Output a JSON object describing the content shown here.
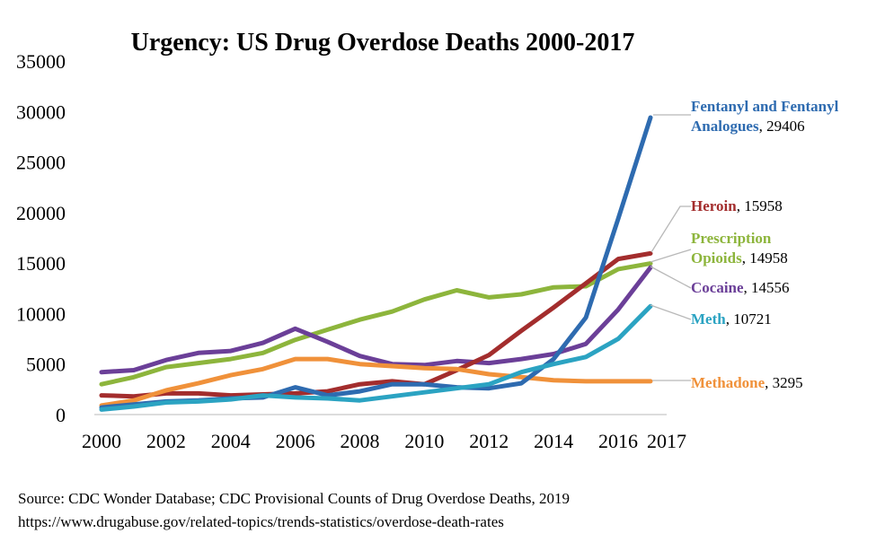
{
  "chart_data": {
    "type": "line",
    "title": "Urgency: US Drug Overdose Deaths 2000-2017",
    "x": [
      2000,
      2001,
      2002,
      2003,
      2004,
      2005,
      2006,
      2007,
      2008,
      2009,
      2010,
      2011,
      2012,
      2013,
      2014,
      2015,
      2016,
      2017
    ],
    "xticks": [
      "2000",
      "2002",
      "2004",
      "2006",
      "2008",
      "2010",
      "2012",
      "2014",
      "2016",
      "2017"
    ],
    "xtick_values": [
      2000,
      2002,
      2004,
      2006,
      2008,
      2010,
      2012,
      2014,
      2016,
      2017.5
    ],
    "yticks": [
      "0",
      "5000",
      "10000",
      "15000",
      "20000",
      "25000",
      "30000",
      "35000"
    ],
    "ylim": [
      0,
      35000
    ],
    "grid": false,
    "series": [
      {
        "name": "Prescription Opioids",
        "color": "#8DB53C",
        "value_label": "14958",
        "values": [
          3000,
          3700,
          4700,
          5100,
          5500,
          6100,
          7400,
          8400,
          9400,
          10200,
          11400,
          12300,
          11600,
          11900,
          12600,
          12700,
          14400,
          14958
        ]
      },
      {
        "name": "Cocaine",
        "color": "#6B3F98",
        "value_label": "14556",
        "values": [
          4200,
          4400,
          5400,
          6100,
          6300,
          7100,
          8500,
          7200,
          5800,
          5000,
          4900,
          5300,
          5100,
          5500,
          6000,
          7000,
          10400,
          14556
        ]
      },
      {
        "name": "Heroin",
        "color": "#A32D2D",
        "value_label": "15958",
        "values": [
          1900,
          1800,
          2100,
          2100,
          1900,
          2000,
          2100,
          2300,
          3000,
          3300,
          3000,
          4400,
          5900,
          8300,
          10600,
          13000,
          15400,
          15958
        ]
      },
      {
        "name": "Methadone",
        "color": "#F0913A",
        "value_label": "3295",
        "values": [
          900,
          1400,
          2400,
          3100,
          3900,
          4500,
          5500,
          5500,
          5000,
          4800,
          4600,
          4500,
          4000,
          3700,
          3400,
          3300,
          3300,
          3295
        ]
      },
      {
        "name": "Fentanyl and Fentanyl Analogues",
        "color": "#2E6BB0",
        "value_label": "29406",
        "values": [
          700,
          1000,
          1300,
          1400,
          1600,
          1700,
          2700,
          1900,
          2300,
          3000,
          3000,
          2700,
          2600,
          3100,
          5500,
          9600,
          19400,
          29406
        ]
      },
      {
        "name": "Meth",
        "color": "#2BA3C2",
        "value_label": "10721",
        "values": [
          500,
          800,
          1200,
          1300,
          1500,
          1900,
          1700,
          1600,
          1400,
          1800,
          2200,
          2600,
          3000,
          4200,
          5000,
          5700,
          7500,
          10721
        ]
      }
    ],
    "labels": [
      {
        "series": "Fentanyl and Fentanyl Analogues",
        "lines": [
          "Fentanyl and Fentanyl",
          "Analogues"
        ],
        "value": "29406"
      },
      {
        "series": "Heroin",
        "lines": [
          "Heroin"
        ],
        "value": "15958"
      },
      {
        "series": "Prescription Opioids",
        "lines": [
          "Prescription",
          "Opioids"
        ],
        "value": "14958"
      },
      {
        "series": "Cocaine",
        "lines": [
          "Cocaine"
        ],
        "value": "14556"
      },
      {
        "series": "Meth",
        "lines": [
          "Meth"
        ],
        "value": "10721"
      },
      {
        "series": "Methadone",
        "lines": [
          "Methadone"
        ],
        "value": "3295"
      }
    ]
  },
  "source": {
    "line1": "Source: CDC Wonder Database; CDC Provisional Counts of Drug Overdose Deaths, 2019",
    "line2": "https://www.drugabuse.gov/related-topics/trends-statistics/overdose-death-rates"
  }
}
